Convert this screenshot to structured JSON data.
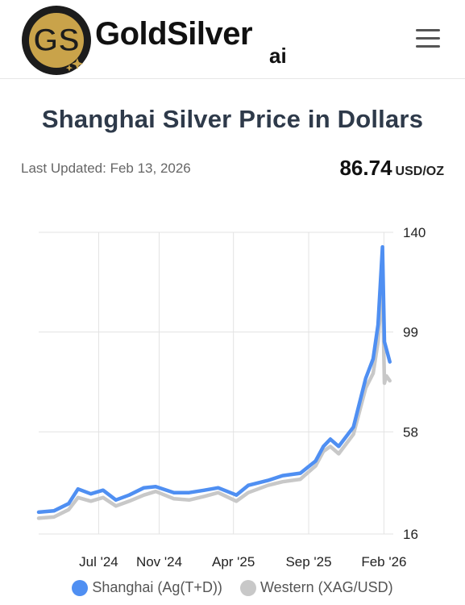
{
  "header": {
    "brand_name": "GoldSilver",
    "brand_suffix": "ai",
    "logo_letters": "GS",
    "menu_icon": "hamburger-menu-icon"
  },
  "page": {
    "title": "Shanghai Silver Price in Dollars",
    "last_updated": "Last Updated: Feb 13, 2026",
    "price": "86.74",
    "price_unit": "USD/OZ"
  },
  "colors": {
    "shanghai": "#4f8ff2",
    "western": "#c8c8c8",
    "gold": "#c9a34a",
    "logo_dark": "#1c1c1c"
  },
  "chart_data": {
    "type": "line",
    "y_ticks": [
      "140",
      "99",
      "58",
      "16"
    ],
    "ylim": [
      16,
      140
    ],
    "x_ticks": [
      "Jul '24",
      "Nov '24",
      "Apr '25",
      "Sep '25",
      "Feb '26"
    ],
    "grid": true,
    "legend_position": "bottom",
    "series": [
      {
        "name": "Shanghai (Ag(T+D))",
        "x": [
          "2024-03-01",
          "2024-04-01",
          "2024-05-01",
          "2024-05-20",
          "2024-06-15",
          "2024-07-10",
          "2024-08-05",
          "2024-09-01",
          "2024-10-01",
          "2024-10-25",
          "2024-12-01",
          "2025-01-01",
          "2025-02-01",
          "2025-03-01",
          "2025-04-07",
          "2025-05-01",
          "2025-06-10",
          "2025-07-10",
          "2025-08-15",
          "2025-09-15",
          "2025-10-01",
          "2025-10-15",
          "2025-11-01",
          "2025-12-01",
          "2025-12-26",
          "2026-01-10",
          "2026-01-20",
          "2026-01-29",
          "2026-02-02",
          "2026-02-06",
          "2026-02-13"
        ],
        "values": [
          25.0,
          25.5,
          28.5,
          34.5,
          32.5,
          34.0,
          30.0,
          32.0,
          35.0,
          35.5,
          33.0,
          33.0,
          34.0,
          35.0,
          32.0,
          36.0,
          38.0,
          40.0,
          41.0,
          46.0,
          52.0,
          55.0,
          52.0,
          60.0,
          80.0,
          88.0,
          102.0,
          134.0,
          95.0,
          92.0,
          86.74
        ]
      },
      {
        "name": "Western (XAG/USD)",
        "x": [
          "2024-03-01",
          "2024-04-01",
          "2024-05-01",
          "2024-05-20",
          "2024-06-15",
          "2024-07-10",
          "2024-08-05",
          "2024-09-01",
          "2024-10-01",
          "2024-10-25",
          "2024-12-01",
          "2025-01-01",
          "2025-02-01",
          "2025-03-01",
          "2025-04-07",
          "2025-05-01",
          "2025-06-10",
          "2025-07-10",
          "2025-08-15",
          "2025-09-15",
          "2025-10-01",
          "2025-10-15",
          "2025-11-01",
          "2025-12-01",
          "2025-12-26",
          "2026-01-10",
          "2026-01-20",
          "2026-01-29",
          "2026-02-02",
          "2026-02-06",
          "2026-02-13"
        ],
        "values": [
          22.5,
          23.0,
          26.0,
          31.0,
          29.5,
          31.0,
          27.5,
          29.5,
          32.0,
          33.5,
          30.5,
          30.0,
          31.5,
          33.0,
          29.5,
          33.0,
          36.0,
          37.5,
          38.5,
          44.0,
          50.0,
          52.0,
          49.0,
          57.0,
          76.0,
          82.0,
          95.0,
          120.0,
          78.0,
          81.0,
          79.0
        ]
      }
    ]
  }
}
